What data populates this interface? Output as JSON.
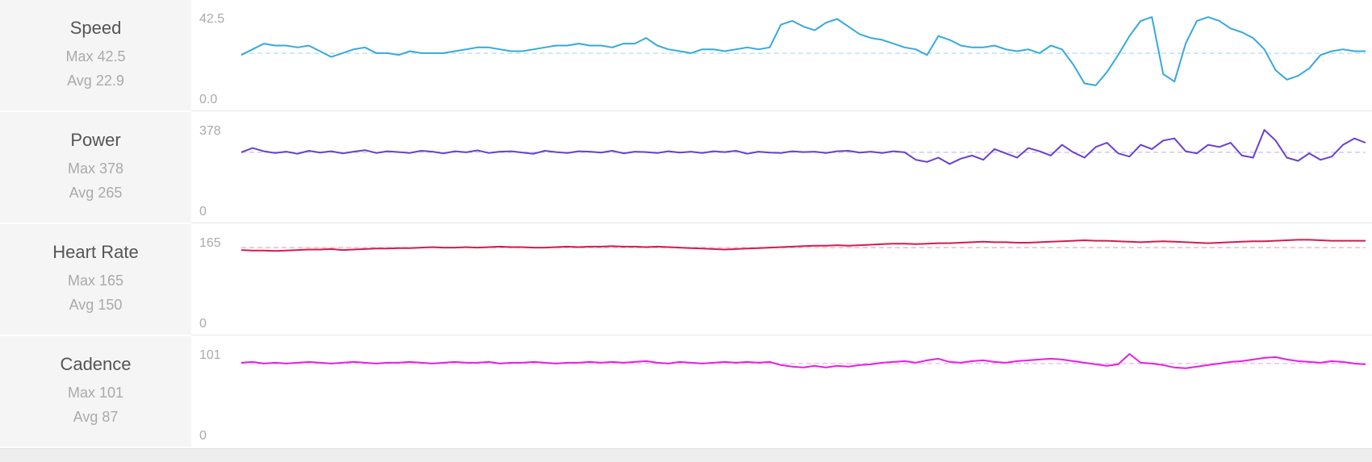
{
  "chart_data": [
    {
      "type": "line",
      "metric": "Speed",
      "max_label": "Max 42.5",
      "avg_label": "Avg 22.9",
      "max": 42.5,
      "avg": 22.9,
      "ylim": [
        0,
        42.5
      ],
      "yticks": [
        "42.5",
        "0.0"
      ],
      "color": "#35a9de",
      "avg_line_color": "#bfe3f5",
      "x": [
        0,
        1,
        2,
        3,
        4,
        5,
        6,
        7,
        8,
        9,
        10,
        11,
        12,
        13,
        14,
        15,
        16,
        17,
        18,
        19,
        20,
        21,
        22,
        23,
        24,
        25,
        26,
        27,
        28,
        29,
        30,
        31,
        32,
        33,
        34,
        35,
        36,
        37,
        38,
        39,
        40,
        41,
        42,
        43,
        44,
        45,
        46,
        47,
        48,
        49,
        50,
        51,
        52,
        53,
        54,
        55,
        56,
        57,
        58,
        59,
        60,
        61,
        62,
        63,
        64,
        65,
        66,
        67,
        68,
        69,
        70,
        71,
        72,
        73,
        74,
        75,
        76,
        77,
        78,
        79,
        80,
        81,
        82,
        83,
        84,
        85,
        86,
        87,
        88,
        89,
        90,
        91,
        92,
        93,
        94,
        95,
        96,
        97,
        98,
        99,
        100
      ],
      "y": [
        22,
        25,
        28,
        27,
        27,
        26,
        27,
        24,
        21,
        23,
        25,
        26,
        23,
        23,
        22,
        24,
        23,
        23,
        23,
        24,
        25,
        26,
        26,
        25,
        24,
        24,
        25,
        26,
        27,
        27,
        28,
        27,
        27,
        26,
        28,
        28,
        31,
        27,
        25,
        24,
        23,
        25,
        25,
        24,
        25,
        26,
        25,
        26,
        38,
        40,
        37,
        35,
        39,
        41,
        37,
        33,
        31,
        30,
        28,
        26,
        25,
        22,
        32,
        30,
        27,
        26,
        26,
        27,
        25,
        24,
        25,
        23,
        27,
        25,
        17,
        7,
        6,
        13,
        22,
        32,
        40,
        42,
        12,
        8,
        28,
        40,
        42,
        40,
        36,
        34,
        31,
        25,
        14,
        9,
        11,
        15,
        22,
        24,
        25,
        24,
        24
      ]
    },
    {
      "type": "line",
      "metric": "Power",
      "max_label": "Max 378",
      "avg_label": "Avg 265",
      "max": 378,
      "avg": 265,
      "ylim": [
        0,
        378
      ],
      "yticks": [
        "378",
        "0"
      ],
      "color": "#6a3fd0",
      "avg_line_color": "#d3c8ef",
      "x": [
        0,
        1,
        2,
        3,
        4,
        5,
        6,
        7,
        8,
        9,
        10,
        11,
        12,
        13,
        14,
        15,
        16,
        17,
        18,
        19,
        20,
        21,
        22,
        23,
        24,
        25,
        26,
        27,
        28,
        29,
        30,
        31,
        32,
        33,
        34,
        35,
        36,
        37,
        38,
        39,
        40,
        41,
        42,
        43,
        44,
        45,
        46,
        47,
        48,
        49,
        50,
        51,
        52,
        53,
        54,
        55,
        56,
        57,
        58,
        59,
        60,
        61,
        62,
        63,
        64,
        65,
        66,
        67,
        68,
        69,
        70,
        71,
        72,
        73,
        74,
        75,
        76,
        77,
        78,
        79,
        80,
        81,
        82,
        83,
        84,
        85,
        86,
        87,
        88,
        89,
        90,
        91,
        92,
        93,
        94,
        95,
        96,
        97,
        98,
        99,
        100
      ],
      "y": [
        265,
        285,
        270,
        262,
        268,
        258,
        272,
        264,
        270,
        260,
        268,
        275,
        262,
        270,
        266,
        262,
        272,
        268,
        260,
        270,
        265,
        274,
        262,
        268,
        270,
        264,
        258,
        272,
        266,
        262,
        270,
        268,
        264,
        272,
        260,
        268,
        266,
        262,
        270,
        264,
        268,
        262,
        270,
        266,
        272,
        258,
        268,
        264,
        262,
        270,
        266,
        268,
        262,
        270,
        272,
        264,
        268,
        262,
        270,
        265,
        230,
        220,
        240,
        210,
        235,
        250,
        230,
        280,
        260,
        240,
        285,
        270,
        250,
        300,
        265,
        240,
        290,
        310,
        260,
        245,
        300,
        280,
        320,
        330,
        270,
        260,
        300,
        290,
        310,
        250,
        240,
        370,
        320,
        240,
        225,
        260,
        230,
        245,
        300,
        330,
        310
      ]
    },
    {
      "type": "line",
      "metric": "Heart Rate",
      "max_label": "Max 165",
      "avg_label": "Avg 150",
      "max": 165,
      "avg": 150,
      "ylim": [
        0,
        165
      ],
      "yticks": [
        "165",
        "0"
      ],
      "color": "#d61b4f",
      "avg_line_color": "#f2b8c8",
      "x": [
        0,
        1,
        2,
        3,
        4,
        5,
        6,
        7,
        8,
        9,
        10,
        11,
        12,
        13,
        14,
        15,
        16,
        17,
        18,
        19,
        20,
        21,
        22,
        23,
        24,
        25,
        26,
        27,
        28,
        29,
        30,
        31,
        32,
        33,
        34,
        35,
        36,
        37,
        38,
        39,
        40,
        41,
        42,
        43,
        44,
        45,
        46,
        47,
        48,
        49,
        50,
        51,
        52,
        53,
        54,
        55,
        56,
        57,
        58,
        59,
        60,
        61,
        62,
        63,
        64,
        65,
        66,
        67,
        68,
        69,
        70,
        71,
        72,
        73,
        74,
        75,
        76,
        77,
        78,
        79,
        80,
        81,
        82,
        83,
        84,
        85,
        86,
        87,
        88,
        89,
        90,
        91,
        92,
        93,
        94,
        95,
        96,
        97,
        98,
        99,
        100
      ],
      "y": [
        145,
        144,
        144,
        143,
        144,
        145,
        146,
        146,
        147,
        145,
        146,
        147,
        148,
        148,
        149,
        149,
        150,
        151,
        150,
        150,
        151,
        150,
        151,
        152,
        151,
        151,
        150,
        150,
        151,
        152,
        151,
        152,
        152,
        153,
        152,
        152,
        151,
        152,
        151,
        150,
        149,
        148,
        147,
        146,
        147,
        148,
        149,
        150,
        151,
        152,
        153,
        154,
        154,
        155,
        154,
        155,
        156,
        157,
        158,
        158,
        157,
        158,
        159,
        159,
        160,
        161,
        162,
        161,
        161,
        160,
        160,
        161,
        162,
        163,
        164,
        165,
        164,
        164,
        163,
        162,
        161,
        162,
        163,
        162,
        161,
        160,
        159,
        160,
        161,
        162,
        163,
        163,
        164,
        165,
        166,
        166,
        165,
        164,
        164,
        164,
        164
      ]
    },
    {
      "type": "line",
      "metric": "Cadence",
      "max_label": "Max 101",
      "avg_label": "Avg 87",
      "max": 101,
      "avg": 87,
      "ylim": [
        0,
        101
      ],
      "yticks": [
        "101",
        "0"
      ],
      "color": "#e61ee6",
      "avg_line_color": "#f5bdf5",
      "x": [
        0,
        1,
        2,
        3,
        4,
        5,
        6,
        7,
        8,
        9,
        10,
        11,
        12,
        13,
        14,
        15,
        16,
        17,
        18,
        19,
        20,
        21,
        22,
        23,
        24,
        25,
        26,
        27,
        28,
        29,
        30,
        31,
        32,
        33,
        34,
        35,
        36,
        37,
        38,
        39,
        40,
        41,
        42,
        43,
        44,
        45,
        46,
        47,
        48,
        49,
        50,
        51,
        52,
        53,
        54,
        55,
        56,
        57,
        58,
        59,
        60,
        61,
        62,
        63,
        64,
        65,
        66,
        67,
        68,
        69,
        70,
        71,
        72,
        73,
        74,
        75,
        76,
        77,
        78,
        79,
        80,
        81,
        82,
        83,
        84,
        85,
        86,
        87,
        88,
        89,
        90,
        91,
        92,
        93,
        94,
        95,
        96,
        97,
        98,
        99,
        100
      ],
      "y": [
        88,
        89,
        87,
        88,
        87,
        88,
        89,
        88,
        87,
        88,
        89,
        88,
        87,
        88,
        88,
        89,
        88,
        87,
        88,
        89,
        88,
        88,
        89,
        87,
        88,
        88,
        89,
        88,
        87,
        88,
        88,
        89,
        88,
        89,
        88,
        89,
        90,
        88,
        87,
        89,
        88,
        87,
        88,
        89,
        88,
        89,
        88,
        89,
        85,
        83,
        82,
        84,
        82,
        84,
        83,
        85,
        86,
        88,
        89,
        90,
        88,
        91,
        93,
        89,
        88,
        90,
        91,
        89,
        88,
        90,
        91,
        92,
        93,
        92,
        90,
        88,
        86,
        84,
        86,
        99,
        88,
        87,
        85,
        82,
        81,
        83,
        85,
        87,
        89,
        90,
        92,
        94,
        95,
        92,
        90,
        89,
        88,
        90,
        89,
        87,
        86
      ]
    }
  ]
}
